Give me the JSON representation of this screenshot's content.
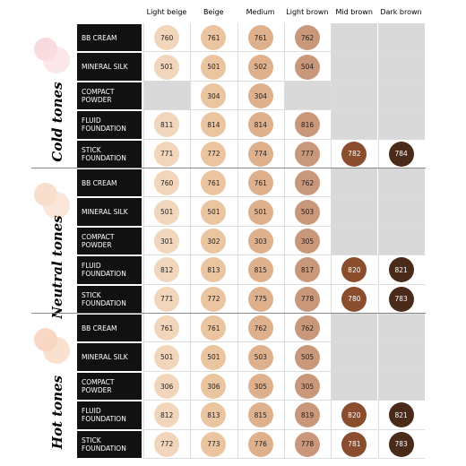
{
  "columns": [
    "Light beige",
    "Beige",
    "Medium",
    "Light brown",
    "Mid brown",
    "Dark brown"
  ],
  "groups": [
    {
      "label": "Cold tones",
      "rows": [
        {
          "product": "BB CREAM",
          "shades": [
            760,
            761,
            761,
            762,
            null,
            null
          ]
        },
        {
          "product": "MINERAL SILK",
          "shades": [
            501,
            501,
            502,
            504,
            null,
            null
          ]
        },
        {
          "product": "COMPACT POWDER",
          "shades": [
            null,
            304,
            304,
            null,
            null,
            null
          ]
        },
        {
          "product": "FLUID FOUNDATION",
          "shades": [
            811,
            814,
            814,
            816,
            null,
            null
          ]
        },
        {
          "product": "STICK FOUNDATION",
          "shades": [
            771,
            772,
            774,
            777,
            782,
            784
          ]
        }
      ]
    },
    {
      "label": "Neutral tones",
      "rows": [
        {
          "product": "BB CREAM",
          "shades": [
            760,
            761,
            761,
            762,
            null,
            null
          ]
        },
        {
          "product": "MINERAL SILK",
          "shades": [
            501,
            501,
            501,
            503,
            null,
            null
          ]
        },
        {
          "product": "COMPACT POWDER",
          "shades": [
            301,
            302,
            303,
            305,
            null,
            null
          ]
        },
        {
          "product": "FLUID FOUNDATION",
          "shades": [
            812,
            813,
            815,
            817,
            820,
            821
          ]
        },
        {
          "product": "STICK FOUNDATION",
          "shades": [
            771,
            772,
            775,
            778,
            780,
            783
          ]
        }
      ]
    },
    {
      "label": "Hot tones",
      "rows": [
        {
          "product": "BB CREAM",
          "shades": [
            761,
            761,
            762,
            762,
            null,
            null
          ]
        },
        {
          "product": "MINERAL SILK",
          "shades": [
            501,
            501,
            503,
            505,
            null,
            null
          ]
        },
        {
          "product": "COMPACT POWDER",
          "shades": [
            306,
            306,
            305,
            305,
            null,
            null
          ]
        },
        {
          "product": "FLUID FOUNDATION",
          "shades": [
            812,
            813,
            815,
            819,
            820,
            821
          ]
        },
        {
          "product": "STICK FOUNDATION",
          "shades": [
            772,
            773,
            776,
            778,
            781,
            783
          ]
        }
      ]
    }
  ]
}
